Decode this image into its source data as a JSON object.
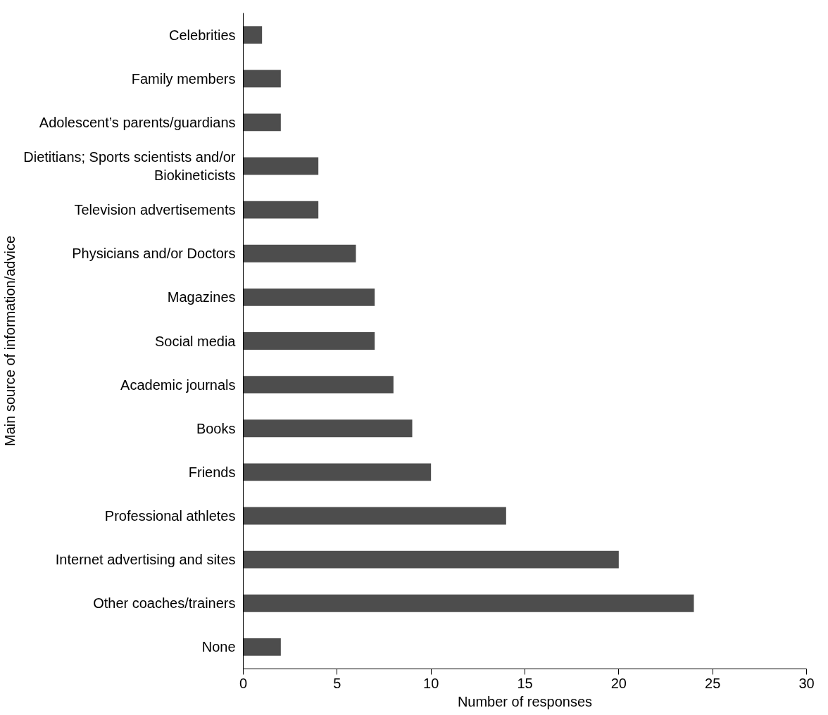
{
  "chart_data": {
    "type": "bar",
    "orientation": "horizontal",
    "xlabel": "Number of responses",
    "ylabel": "Main source of information/advice",
    "categories": [
      "Celebrities",
      "Family members",
      "Adolescent’s parents/guardians",
      "Dietitians; Sports scientists and/or Biokineticists",
      "Television advertisements",
      "Physicians and/or Doctors",
      "Magazines",
      "Social media",
      "Academic journals",
      "Books",
      "Friends",
      "Professional athletes",
      "Internet advertising and sites",
      "Other coaches/trainers",
      "None"
    ],
    "values": [
      1,
      2,
      2,
      4,
      4,
      6,
      7,
      7,
      8,
      9,
      10,
      14,
      20,
      24,
      2
    ],
    "color": "#4d4d4d",
    "xlim": [
      0,
      30
    ],
    "xticks": [
      0,
      5,
      10,
      15,
      20,
      25,
      30
    ],
    "grid": false
  }
}
